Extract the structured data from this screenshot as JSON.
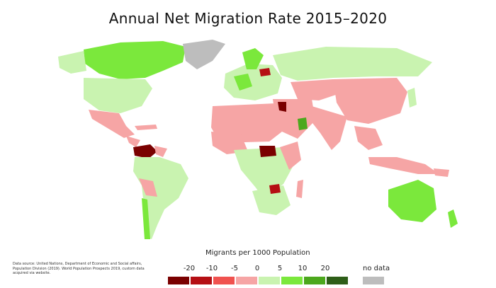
{
  "title": "Annual Net Migration Rate 2015–2020",
  "source_text": "Data source: United Nations, Department of Economic and Social affairs, Population Division (2019). World Population Prospects 2019, custom data acquired via website.",
  "legend": {
    "title": "Migrants per 1000 Population",
    "ticks": [
      "-20",
      "-10",
      "-5",
      "0",
      "5",
      "10",
      "20"
    ],
    "bins": [
      {
        "color": "#7a0000"
      },
      {
        "color": "#b50f14"
      },
      {
        "color": "#f0524f"
      },
      {
        "color": "#f6a5a5"
      },
      {
        "color": "#c9f3b0"
      },
      {
        "color": "#7be83c"
      },
      {
        "color": "#4ca81d"
      },
      {
        "color": "#2e5e18"
      }
    ],
    "no_data_label": "no data",
    "no_data_color": "#bdbdbd"
  }
}
